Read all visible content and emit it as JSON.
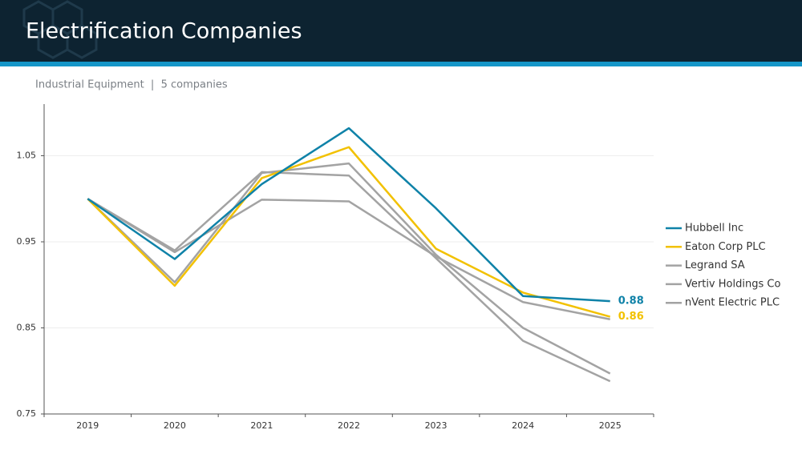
{
  "title": "Electrification Companies",
  "subtitle": "Industrial Equipment  |  5 companies",
  "chart_data": {
    "type": "line",
    "categories": [
      "2019",
      "2020",
      "2021",
      "2022",
      "2023",
      "2024",
      "2025"
    ],
    "series": [
      {
        "name": "Hubbell Inc",
        "color": "#0f82a8",
        "values": [
          1.0,
          0.93,
          1.017,
          1.082,
          0.989,
          0.887,
          0.881
        ],
        "value_labels": [
          null,
          null,
          null,
          null,
          null,
          null,
          "0.88"
        ]
      },
      {
        "name": "Eaton Corp PLC",
        "color": "#f2c100",
        "values": [
          1.0,
          0.899,
          1.024,
          1.06,
          0.942,
          0.891,
          0.863
        ],
        "value_labels": [
          null,
          null,
          null,
          null,
          null,
          null,
          "0.86"
        ]
      },
      {
        "name": "Legrand SA",
        "color": "#a3a3a3",
        "values": [
          1.0,
          0.938,
          0.999,
          0.997,
          0.933,
          0.88,
          0.86
        ]
      },
      {
        "name": "Vertiv Holdings Co",
        "color": "#a3a3a3",
        "values": [
          1.0,
          0.903,
          1.03,
          1.041,
          0.935,
          0.85,
          0.797
        ]
      },
      {
        "name": "nVent Electric PLC",
        "color": "#a3a3a3",
        "values": [
          1.0,
          0.94,
          1.031,
          1.027,
          0.931,
          0.835,
          0.788
        ]
      }
    ],
    "ylim": [
      0.75,
      1.11
    ],
    "yticks": [
      0.75,
      0.85,
      0.95,
      1.05
    ],
    "grid": true,
    "legend": "right"
  }
}
